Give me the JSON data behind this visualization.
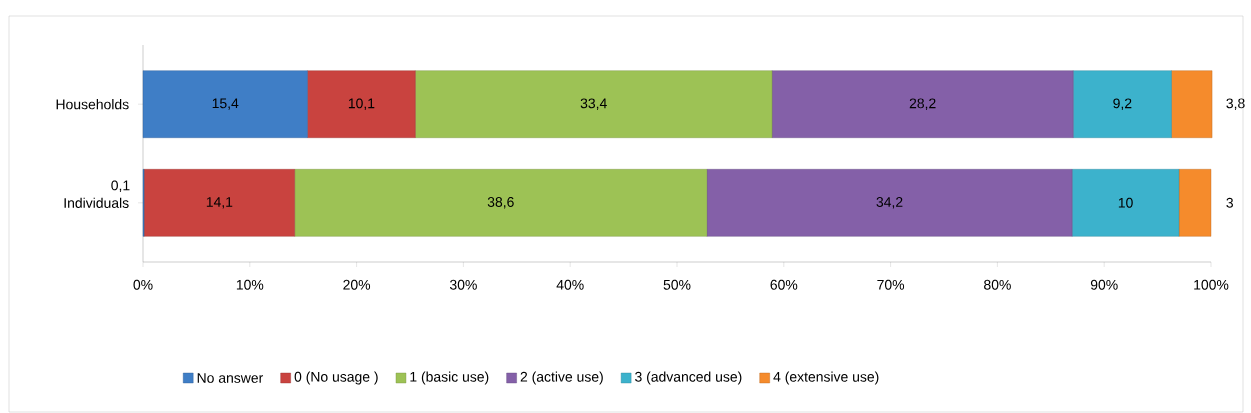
{
  "chart_data": {
    "type": "bar",
    "orientation": "horizontal",
    "stacked": true,
    "categories": [
      "Households",
      "Individuals"
    ],
    "series": [
      {
        "name": "No answer",
        "color": "#3f7ec6",
        "values": [
          15.4,
          0.1
        ],
        "value_labels": [
          "15,4",
          "0,1"
        ]
      },
      {
        "name": "0 (No usage )",
        "color": "#c9433f",
        "values": [
          10.1,
          14.1
        ],
        "value_labels": [
          "10,1",
          "14,1"
        ]
      },
      {
        "name": "1 (basic use)",
        "color": "#9dc255",
        "values": [
          33.4,
          38.6
        ],
        "value_labels": [
          "33,4",
          "38,6"
        ]
      },
      {
        "name": "2 (active use)",
        "color": "#8460a8",
        "values": [
          28.2,
          34.2
        ],
        "value_labels": [
          "28,2",
          "34,2"
        ]
      },
      {
        "name": "3 (advanced use)",
        "color": "#3cb2cc",
        "values": [
          9.2,
          10
        ],
        "value_labels": [
          "9,2",
          "10"
        ]
      },
      {
        "name": "4 (extensive use)",
        "color": "#f58b2c",
        "values": [
          3.8,
          3
        ],
        "value_labels": [
          "3,8",
          "3"
        ]
      }
    ],
    "xlim": [
      0,
      100
    ],
    "xticks": [
      {
        "value": 0,
        "label": "0%"
      },
      {
        "value": 10,
        "label": "10%"
      },
      {
        "value": 20,
        "label": "20%"
      },
      {
        "value": 30,
        "label": "30%"
      },
      {
        "value": 40,
        "label": "40%"
      },
      {
        "value": 50,
        "label": "50%"
      },
      {
        "value": 60,
        "label": "60%"
      },
      {
        "value": 70,
        "label": "70%"
      },
      {
        "value": 80,
        "label": "80%"
      },
      {
        "value": 90,
        "label": "90%"
      },
      {
        "value": 100,
        "label": "100%"
      }
    ],
    "legend": "bottom",
    "grid": false
  }
}
